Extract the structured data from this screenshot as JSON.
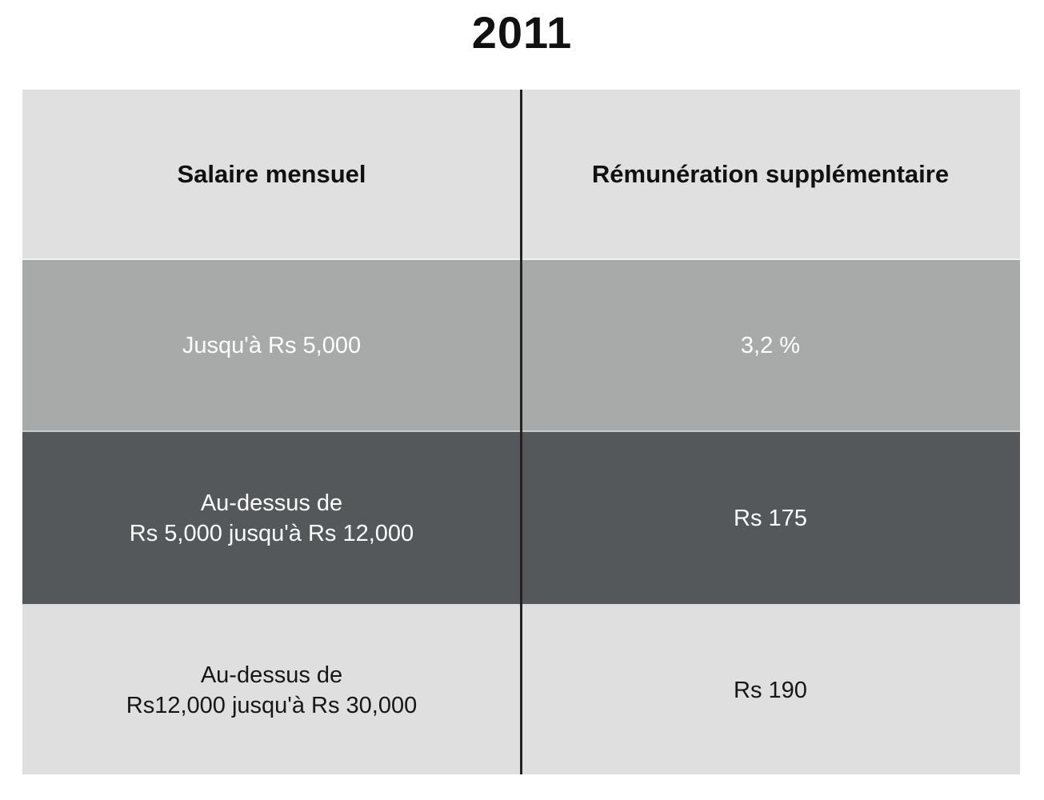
{
  "title": "2011",
  "table": {
    "header": {
      "salary": "Salaire mensuel",
      "remuneration": "Rémunération supplémentaire"
    },
    "rows": [
      {
        "salary_l1": "Jusqu'à Rs 5,000",
        "salary_l2": "",
        "amount": "3,2 %"
      },
      {
        "salary_l1": "Au-dessus de",
        "salary_l2": "Rs 5,000 jusqu'à Rs 12,000",
        "amount": "Rs 175"
      },
      {
        "salary_l1": "Au-dessus de",
        "salary_l2": "Rs12,000 jusqu'à Rs 30,000",
        "amount": "Rs 190"
      }
    ]
  },
  "colors": {
    "header_bg": "#e0e0e0",
    "row1_bg": "#a7aaa9",
    "row2_bg": "#54585a",
    "row3_bg": "#dfdfdf",
    "divider": "#222222",
    "light_text": "#fefefe",
    "dark_text": "#111111"
  },
  "chart_data": {
    "type": "table",
    "title": "2011",
    "columns": [
      "Salaire mensuel",
      "Rémunération supplémentaire"
    ],
    "rows": [
      [
        "Jusqu'à Rs 5,000",
        "3,2 %"
      ],
      [
        "Au-dessus de Rs 5,000 jusqu'à Rs 12,000",
        "Rs 175"
      ],
      [
        "Au-dessus de Rs12,000 jusqu'à Rs 30,000",
        "Rs 190"
      ]
    ]
  }
}
